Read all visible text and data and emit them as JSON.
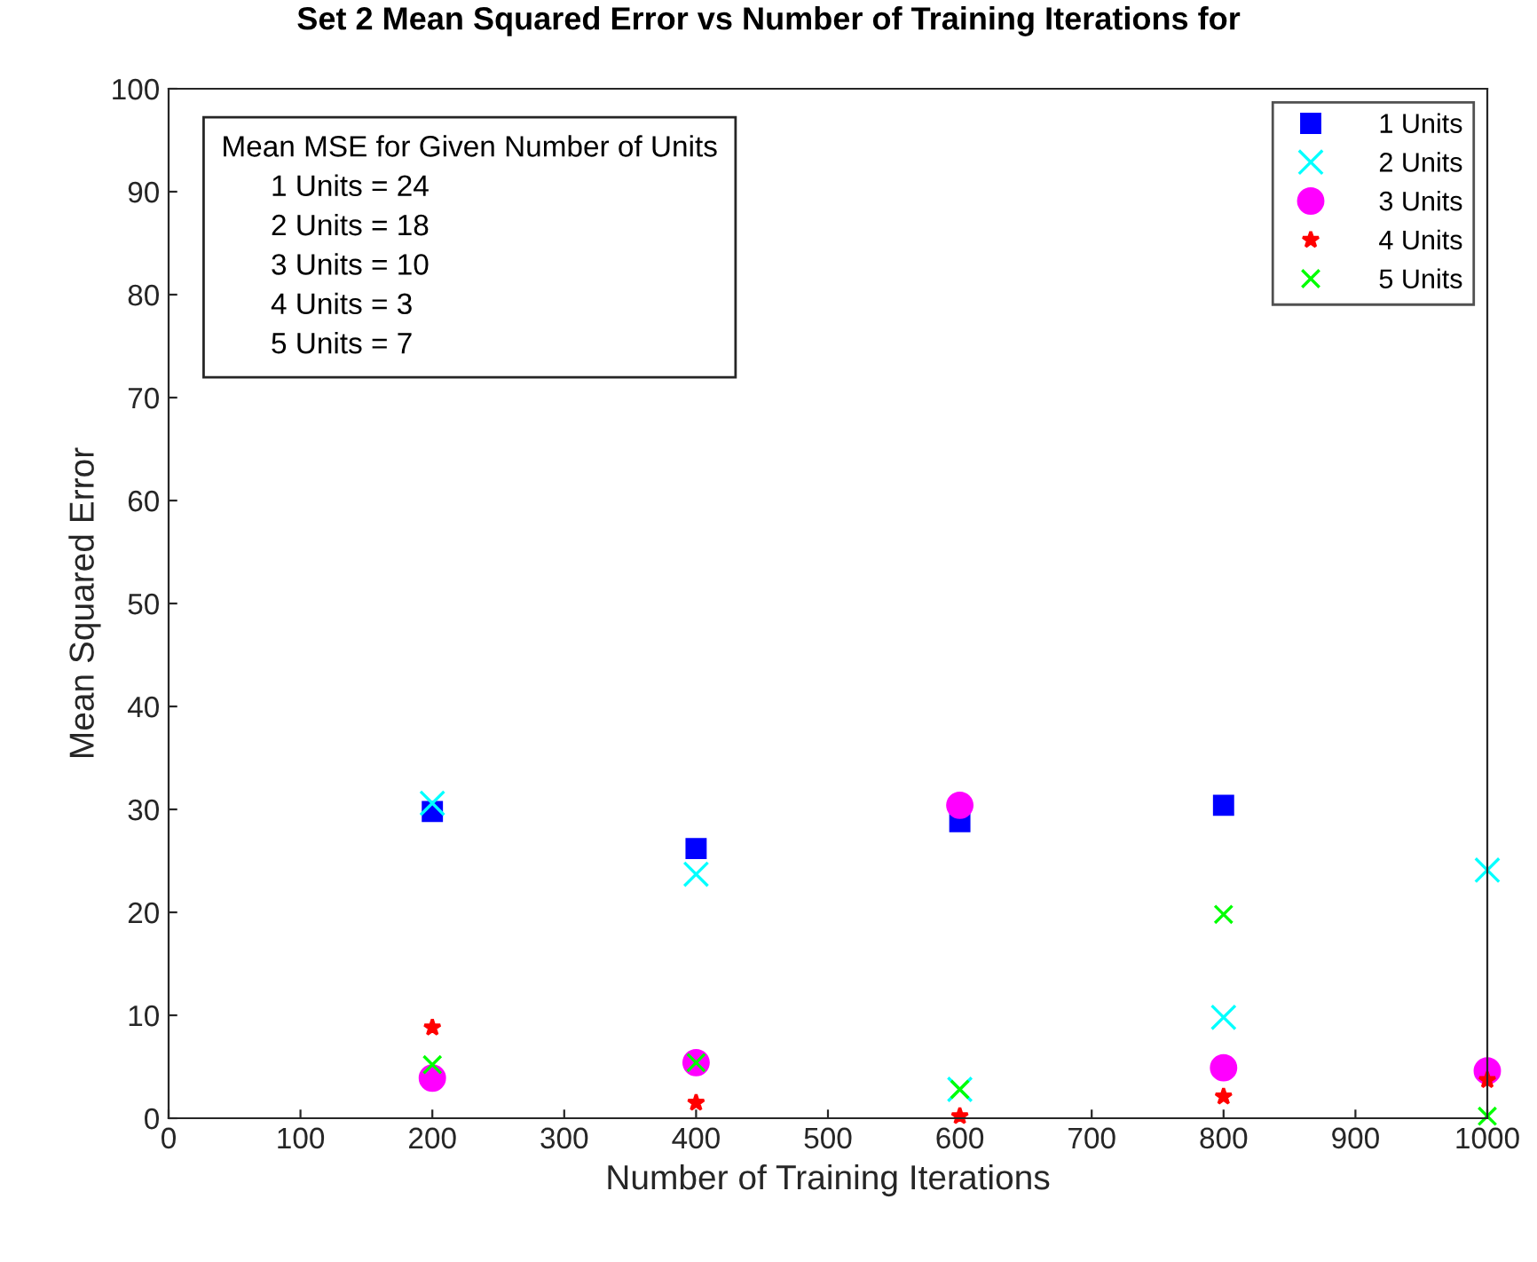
{
  "chart_data": {
    "type": "scatter",
    "title": "Set 2 Mean Squared Error vs Number of Training Iterations for",
    "xlabel": "Number of Training Iterations",
    "ylabel": "Mean Squared Error",
    "x": [
      200,
      400,
      600,
      800,
      1000
    ],
    "series": [
      {
        "name": "1 Units",
        "color": "#0000ff",
        "marker": "square",
        "values": [
          29.8,
          26.2,
          28.8,
          30.4,
          null
        ]
      },
      {
        "name": "2 Units",
        "color": "#00ffff",
        "marker": "cross",
        "values": [
          30.6,
          23.7,
          2.8,
          9.8,
          24.1
        ]
      },
      {
        "name": "3 Units",
        "color": "#ff00ff",
        "marker": "circle",
        "values": [
          3.9,
          5.4,
          30.4,
          4.9,
          4.6
        ]
      },
      {
        "name": "4 Units",
        "color": "#ff0000",
        "marker": "star",
        "values": [
          8.8,
          1.5,
          0.2,
          2.1,
          3.7
        ]
      },
      {
        "name": "5 Units",
        "color": "#00ff00",
        "marker": "cross",
        "values": [
          5.2,
          5.4,
          2.8,
          19.8,
          0.2
        ]
      }
    ],
    "annotations": [
      "Mean MSE for Given Number of Units",
      "1 Units = 24",
      "2 Units = 18",
      "3 Units = 10",
      "4 Units = 3",
      "5 Units = 7"
    ],
    "xlim": [
      0,
      1000
    ],
    "xticks": [
      0,
      100,
      200,
      300,
      400,
      500,
      600,
      700,
      800,
      900,
      1000
    ],
    "ylim": [
      0,
      100
    ],
    "yticks": [
      0,
      10,
      20,
      30,
      40,
      50,
      60,
      70,
      80,
      90,
      100
    ],
    "legend": "top right",
    "grid": false
  }
}
